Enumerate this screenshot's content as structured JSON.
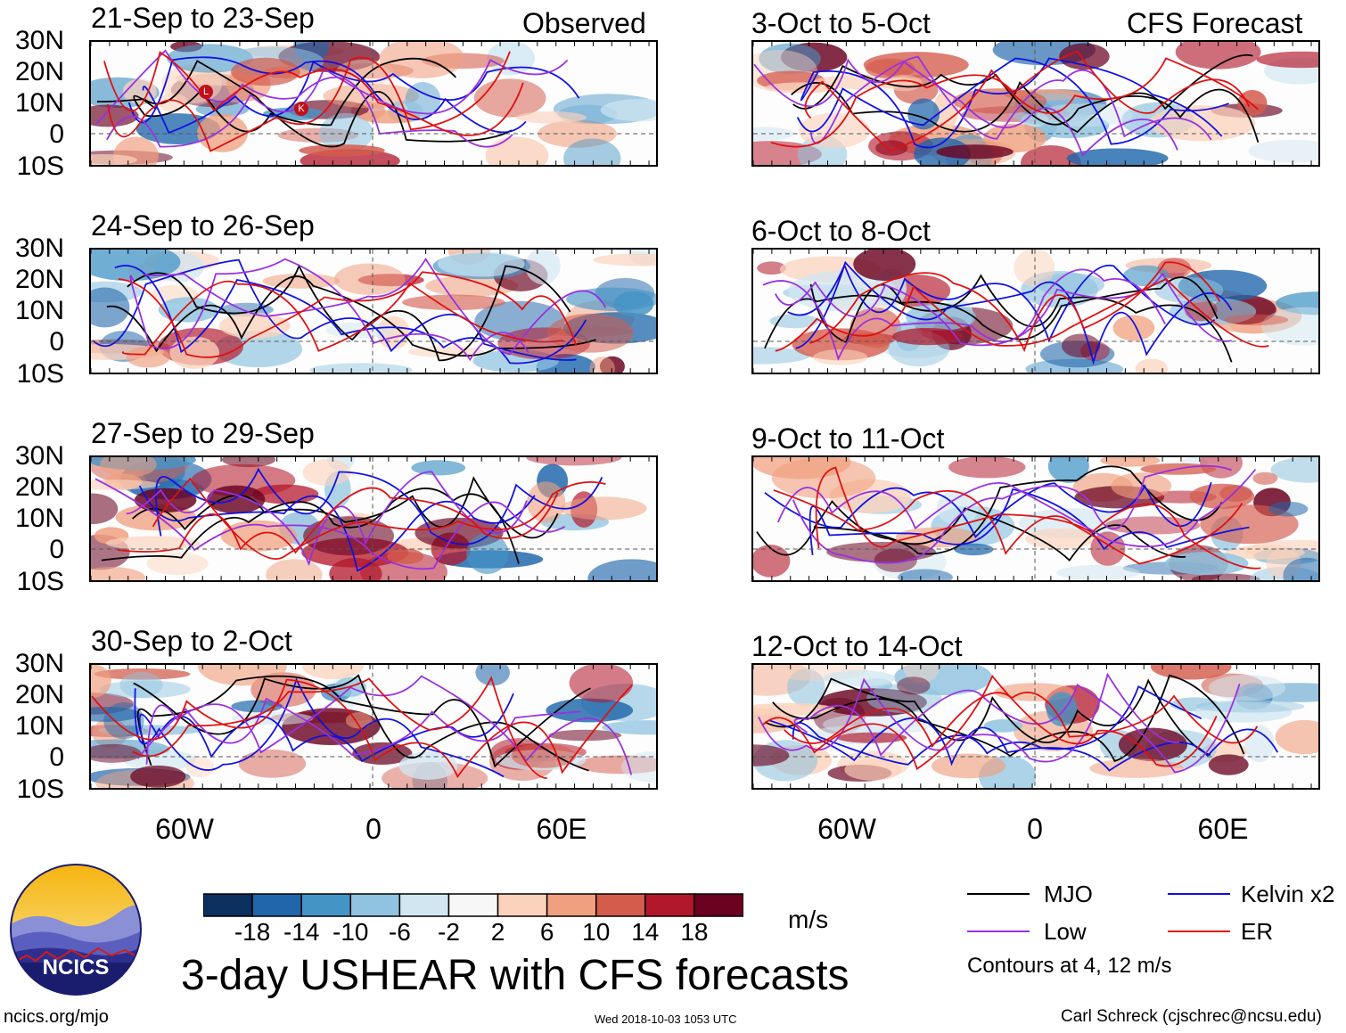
{
  "figure": {
    "title": "3-day USHEAR with CFS forecasts",
    "units": "m/s",
    "contour_note": "Contours at 4, 12 m/s",
    "website": "ncics.org/mjo",
    "timestamp": "Wed 2018-10-03 1053 UTC",
    "author": "Carl Schreck (cjschrec@ncsu.edu)",
    "logo_text": "NCICS"
  },
  "columns": {
    "left_label": "Observed",
    "right_label": "CFS Forecast"
  },
  "panels": [
    {
      "title": "21-Sep to 23-Sep",
      "column": "observed"
    },
    {
      "title": "24-Sep to 26-Sep",
      "column": "observed"
    },
    {
      "title": "27-Sep to 29-Sep",
      "column": "observed"
    },
    {
      "title": "30-Sep to 2-Oct",
      "column": "observed"
    },
    {
      "title": "3-Oct to 5-Oct",
      "column": "forecast"
    },
    {
      "title": "6-Oct to 8-Oct",
      "column": "forecast"
    },
    {
      "title": "9-Oct to 11-Oct",
      "column": "forecast"
    },
    {
      "title": "12-Oct to 14-Oct",
      "column": "forecast"
    }
  ],
  "latitude_labels": [
    "30N",
    "20N",
    "10N",
    "0",
    "10S"
  ],
  "longitude_labels": [
    "60W",
    "0",
    "60E"
  ],
  "colorbar": {
    "labels": [
      "-18",
      "-14",
      "-10",
      "-6",
      "-2",
      "2",
      "6",
      "10",
      "14",
      "18"
    ],
    "colors": [
      "#0b2f5e",
      "#1f66ab",
      "#4594c6",
      "#8fc3df",
      "#d1e6f1",
      "#f7f7f7",
      "#fbd2bc",
      "#f0a07f",
      "#d45c4d",
      "#b3172b",
      "#6a0220"
    ]
  },
  "legend": {
    "items": [
      {
        "label": "MJO",
        "color": "#000000"
      },
      {
        "label": "Kelvin x2",
        "color": "#1010e0"
      },
      {
        "label": "Low",
        "color": "#9a30e0"
      },
      {
        "label": "ER",
        "color": "#e01010"
      }
    ]
  },
  "storm_markers": [
    "L",
    "K"
  ]
}
